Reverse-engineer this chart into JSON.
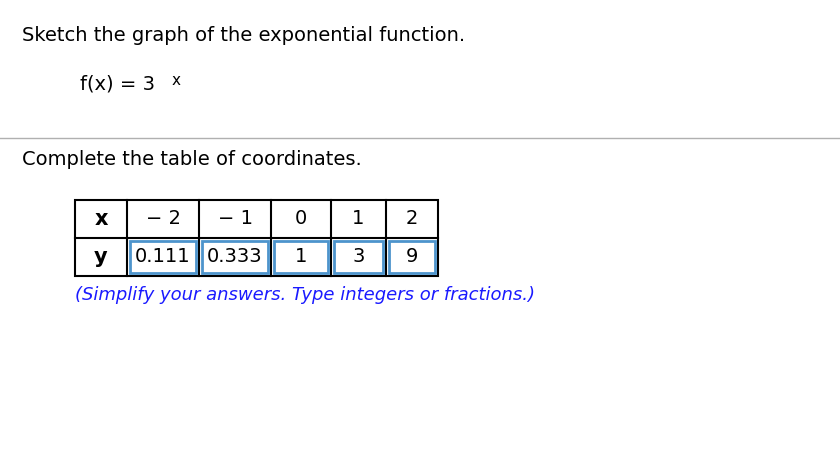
{
  "title_text": "Sketch the graph of the exponential function.",
  "function_text": "f(x) = 3",
  "function_sup": "x",
  "subtitle_text": "Complete the table of coordinates.",
  "hint_text": "(Simplify your answers. Type integers or fractions.)",
  "x_row_label": "x",
  "y_row_label": "y",
  "x_values": [
    "− 2",
    "− 1",
    "0",
    "1",
    "2"
  ],
  "y_values": [
    "0.111",
    "0.333",
    "1",
    "3",
    "9"
  ],
  "bg_color": "#ffffff",
  "text_color": "#000000",
  "hint_color": "#1a1aff",
  "highlight_border_color": "#4d94cc",
  "divider_color": "#b0b0b0",
  "title_fontsize": 14,
  "function_fontsize": 14,
  "subtitle_fontsize": 14,
  "table_fontsize": 14,
  "hint_fontsize": 13
}
